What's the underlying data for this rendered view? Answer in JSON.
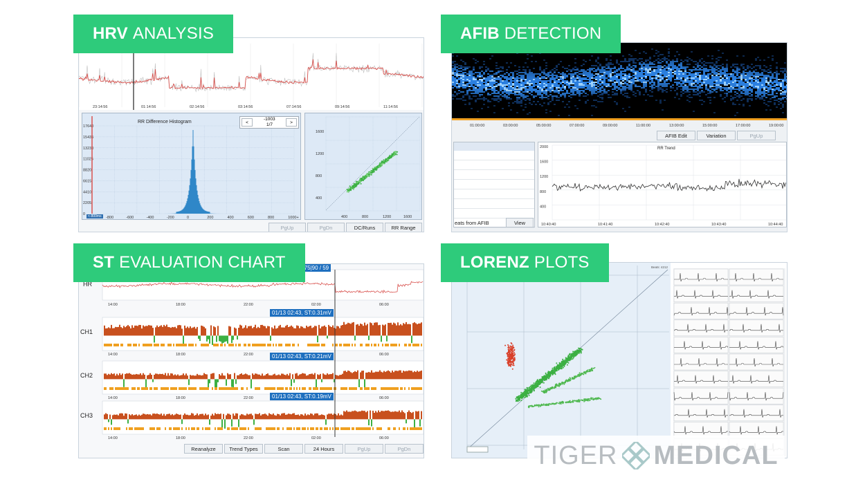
{
  "badges": {
    "hrv": {
      "bold": "HRV",
      "rest": "ANALYSIS"
    },
    "afib": {
      "bold": "AFIB",
      "rest": "DETECTION"
    },
    "st": {
      "bold": "ST",
      "rest": "EVALUATION CHART"
    },
    "lorenz": {
      "bold": "LORENZ",
      "rest": "PLOTS"
    }
  },
  "hrv": {
    "time_ticks": [
      "23:14:56",
      "01:14:56",
      "02:14:56",
      "03:14:56",
      "07:14:56",
      "09:14:56",
      "11:14:56"
    ],
    "histogram_title": "RR Difference Histogram",
    "nav_prev": "<",
    "nav_next": ">",
    "nav_value": "-1003",
    "nav_page": "1/7",
    "hist_yticks": [
      "17640",
      "15435",
      "13230",
      "11025",
      "8820",
      "6615",
      "4410",
      "2205",
      "0"
    ],
    "hist_xticks": [
      "-800",
      "-600",
      "-400",
      "-200",
      "0",
      "200",
      "400",
      "600",
      "800",
      "1000+"
    ],
    "hist_badge": "<-800ms",
    "scatter_yticks": [
      "1600",
      "1200",
      "800",
      "400"
    ],
    "scatter_xticks": [
      "400",
      "800",
      "1200",
      "1600"
    ],
    "buttons": [
      "PgUp",
      "PgDn",
      "DC/Runs",
      "RR Range"
    ]
  },
  "afib": {
    "time_ticks": [
      "01:00:00",
      "03:00:00",
      "05:00:00",
      "07:00:00",
      "09:00:00",
      "11:00:00",
      "13:00:00",
      "15:00:00",
      "17:00:00",
      "19:00:00"
    ],
    "buttons": [
      "AFIB Edit",
      "Variation",
      "PgUp"
    ],
    "list_footer": "eats from AFIB",
    "view_button": "View",
    "trend_title": "RR Trend",
    "trend_yticks": [
      "2000",
      "1600",
      "1200",
      "800",
      "400"
    ],
    "trend_xticks": [
      "10:40:40",
      "10:41:40",
      "10:42:40",
      "10:43:40",
      "10:44:40"
    ]
  },
  "st": {
    "hr_label": "HR",
    "header_value": "5.75|90 / 59",
    "time_ticks": [
      "14:00",
      "18:00",
      "22:00",
      "02:00",
      "06:00"
    ],
    "channels": [
      {
        "label": "CH1",
        "tag": "01/13 02:43, ST:0.31mV"
      },
      {
        "label": "CH2",
        "tag": "01/13 02:43, ST:0.21mV"
      },
      {
        "label": "CH3",
        "tag": "01/13 02:43, ST:0.19mV"
      }
    ],
    "buttons": [
      "Reanalyze",
      "Trend Types",
      "Scan",
      "24 Hours",
      "PgUp",
      "PgDn"
    ]
  },
  "lorenz": {
    "corner_label": "Beats: 4212",
    "watermark_left": "TIGER",
    "watermark_right": "MEDICAL"
  },
  "colors": {
    "badge": "#2ecb7b",
    "trace_red": "#d9534f",
    "histogram_blue": "#2f87c8",
    "scatter_green": "#3cb043",
    "st_orange": "#c8501e",
    "st_yellow": "#f0a020",
    "afib_blue": "#2b7fe0"
  }
}
